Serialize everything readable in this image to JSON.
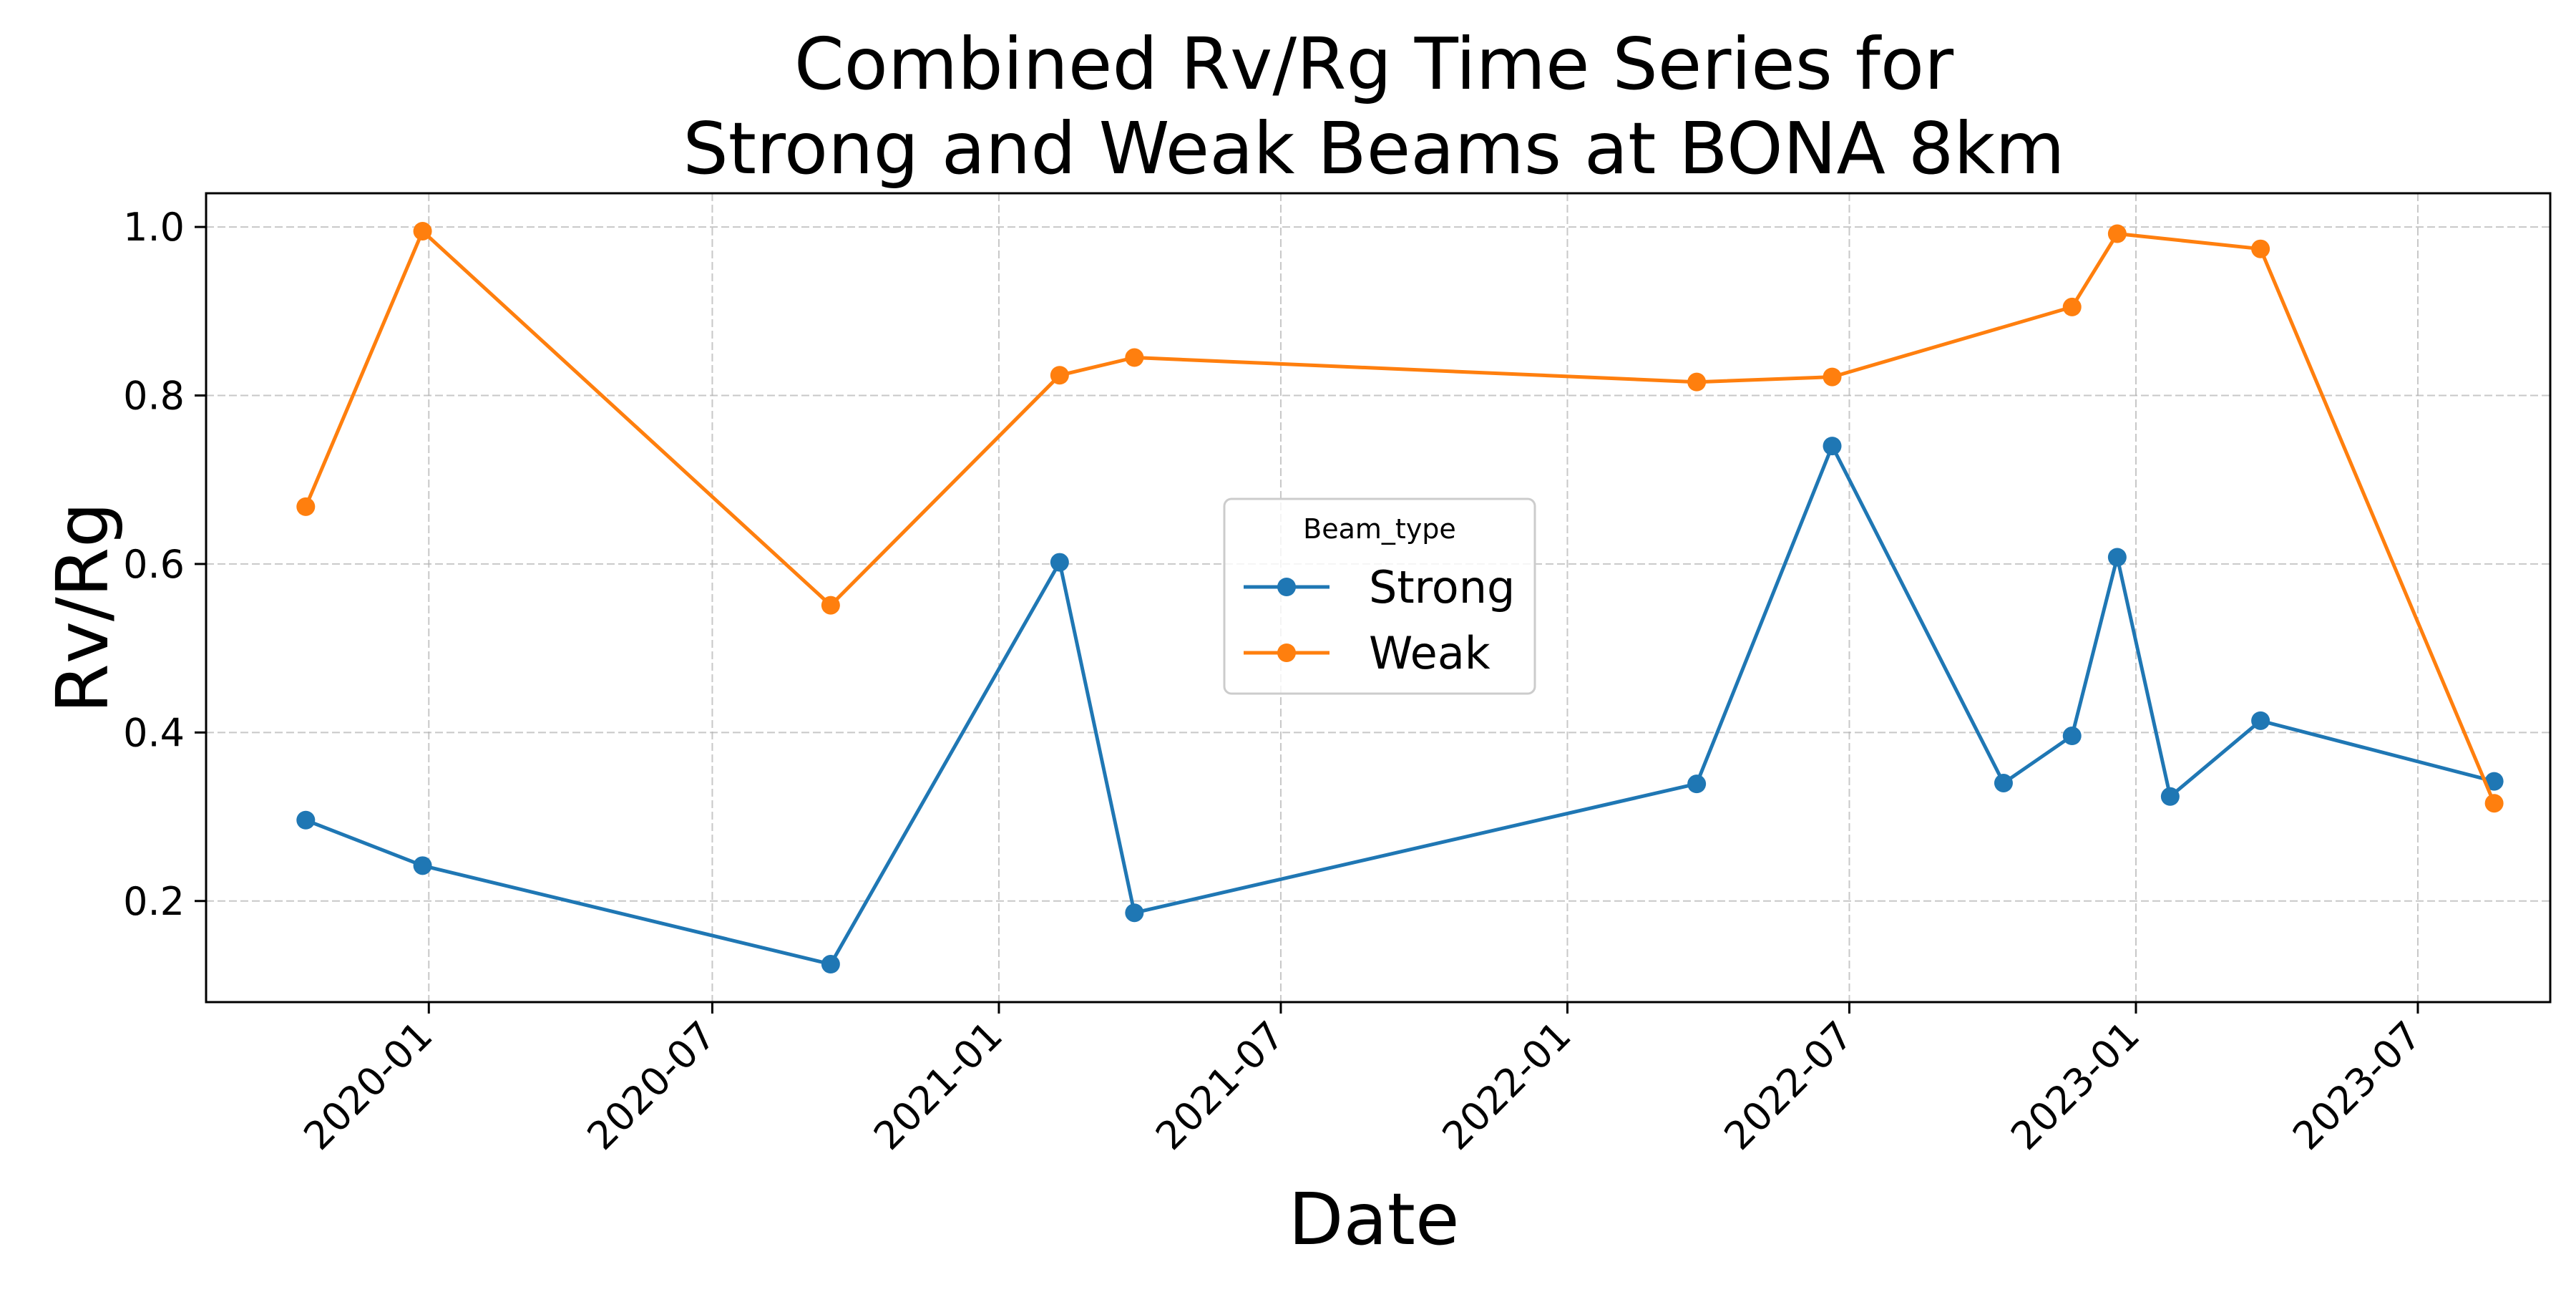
{
  "chart_data": {
    "type": "line",
    "title": [
      "Combined Rv/Rg Time Series for",
      "Strong and Weak Beams at BONA 8km"
    ],
    "xlabel": "Date",
    "ylabel": "Rv/Rg",
    "x_axis_type": "date",
    "xlim": [
      "2019-08-11",
      "2023-09-24"
    ],
    "ylim": [
      0.08,
      1.04
    ],
    "x_ticks": [
      "2020-01",
      "2020-07",
      "2021-01",
      "2021-07",
      "2022-01",
      "2022-07",
      "2023-01",
      "2023-07"
    ],
    "y_ticks": [
      "0.2",
      "0.4",
      "0.6",
      "0.8",
      "1.0"
    ],
    "grid": true,
    "legend": {
      "title": "Beam_type",
      "position": "center"
    },
    "series": [
      {
        "name": "Strong",
        "color": "#1f77b4",
        "marker": "circle",
        "points": [
          {
            "x": "2019-10-14",
            "y": 0.296
          },
          {
            "x": "2019-12-28",
            "y": 0.242
          },
          {
            "x": "2020-09-15",
            "y": 0.125
          },
          {
            "x": "2021-02-09",
            "y": 0.602
          },
          {
            "x": "2021-03-29",
            "y": 0.186
          },
          {
            "x": "2022-03-25",
            "y": 0.339
          },
          {
            "x": "2022-06-20",
            "y": 0.74
          },
          {
            "x": "2022-10-08",
            "y": 0.34
          },
          {
            "x": "2022-11-21",
            "y": 0.396
          },
          {
            "x": "2022-12-20",
            "y": 0.608
          },
          {
            "x": "2023-01-23",
            "y": 0.324
          },
          {
            "x": "2023-03-22",
            "y": 0.414
          },
          {
            "x": "2023-08-19",
            "y": 0.342
          }
        ]
      },
      {
        "name": "Weak",
        "color": "#ff7f0e",
        "marker": "circle",
        "points": [
          {
            "x": "2019-10-14",
            "y": 0.668
          },
          {
            "x": "2019-12-28",
            "y": 0.995
          },
          {
            "x": "2020-09-15",
            "y": 0.551
          },
          {
            "x": "2021-02-09",
            "y": 0.824
          },
          {
            "x": "2021-03-29",
            "y": 0.845
          },
          {
            "x": "2022-03-25",
            "y": 0.816
          },
          {
            "x": "2022-06-20",
            "y": 0.822
          },
          {
            "x": "2022-11-21",
            "y": 0.905
          },
          {
            "x": "2022-12-20",
            "y": 0.992
          },
          {
            "x": "2023-03-22",
            "y": 0.974
          },
          {
            "x": "2023-08-19",
            "y": 0.316
          }
        ]
      }
    ]
  }
}
